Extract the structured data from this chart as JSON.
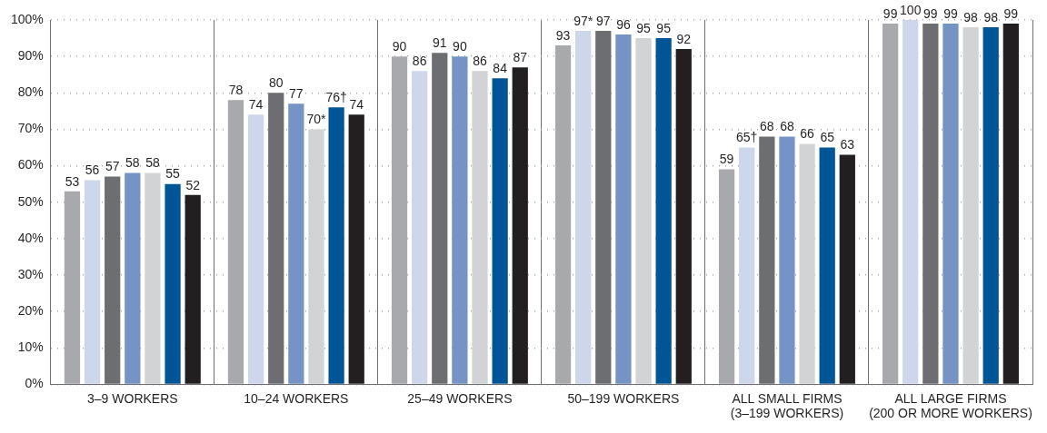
{
  "chart_data": {
    "type": "bar",
    "categories": [
      "3–9 WORKERS",
      "10–24 WORKERS",
      "25–49 WORKERS",
      "50–199 WORKERS",
      "ALL SMALL FIRMS (3–199 WORKERS)",
      "ALL LARGE FIRMS (200 OR MORE WORKERS)"
    ],
    "series": [
      {
        "color": "#a7a9ac",
        "values": [
          53,
          78,
          90,
          93,
          59,
          99
        ],
        "value_labels": [
          "53",
          "78",
          "90",
          "93",
          "59",
          "99"
        ]
      },
      {
        "color": "#cdd6ea",
        "values": [
          56,
          74,
          86,
          97,
          65,
          100
        ],
        "value_labels": [
          "56",
          "74",
          "86",
          "97*",
          "65†",
          "100"
        ]
      },
      {
        "color": "#6d6e71",
        "values": [
          57,
          80,
          91,
          97,
          68,
          99
        ],
        "value_labels": [
          "57",
          "80",
          "91",
          "97",
          "68",
          "99"
        ]
      },
      {
        "color": "#7593c4",
        "values": [
          58,
          77,
          90,
          96,
          68,
          99
        ],
        "value_labels": [
          "58",
          "77",
          "90",
          "96",
          "68",
          "99"
        ]
      },
      {
        "color": "#d1d3d4",
        "values": [
          58,
          70,
          86,
          95,
          66,
          98
        ],
        "value_labels": [
          "58",
          "70*",
          "86",
          "95",
          "66",
          "98"
        ]
      },
      {
        "color": "#005596",
        "values": [
          55,
          76,
          84,
          95,
          65,
          98
        ],
        "value_labels": [
          "55",
          "76†",
          "84",
          "95",
          "65",
          "98"
        ]
      },
      {
        "color": "#231f20",
        "values": [
          52,
          74,
          87,
          92,
          63,
          99
        ],
        "value_labels": [
          "52",
          "74",
          "87",
          "92",
          "63",
          "99"
        ]
      }
    ],
    "ylim": [
      0,
      100
    ],
    "yticks": [
      {
        "value": 0,
        "label": "0%"
      },
      {
        "value": 10,
        "label": "10%"
      },
      {
        "value": 20,
        "label": "20%"
      },
      {
        "value": 30,
        "label": "30%"
      },
      {
        "value": 40,
        "label": "40%"
      },
      {
        "value": 50,
        "label": "50%"
      },
      {
        "value": 60,
        "label": "60%"
      },
      {
        "value": 70,
        "label": "70%"
      },
      {
        "value": 80,
        "label": "80%"
      },
      {
        "value": 90,
        "label": "90%"
      },
      {
        "value": 100,
        "label": "100%"
      }
    ],
    "grid": true,
    "legend": false
  }
}
